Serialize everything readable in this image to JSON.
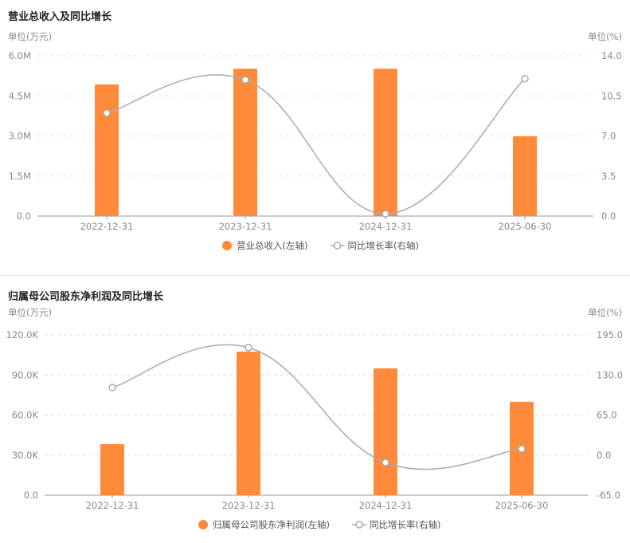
{
  "colors": {
    "bar": "#ff8b3a",
    "line": "#aaaaaa",
    "grid": "#e0e0e0",
    "axis": "#999999"
  },
  "chart_data": [
    {
      "type": "bar+line",
      "title": "营业总收入及同比增长",
      "left_unit": "单位(万元)",
      "right_unit": "单位(%)",
      "categories": [
        "2022-12-31",
        "2023-12-31",
        "2024-12-31",
        "2025-06-30"
      ],
      "left_ticks": [
        "0.0",
        "1.5M",
        "3.0M",
        "4.5M",
        "6.0M"
      ],
      "right_ticks": [
        "0.0",
        "3.5",
        "7.0",
        "10.5",
        "14.0"
      ],
      "ylim_left": [
        0,
        6000000
      ],
      "ylim_right": [
        0,
        14
      ],
      "series": [
        {
          "name": "营业总收入(左轴)",
          "type": "bar",
          "values": [
            4930000,
            5520000,
            5520000,
            2990000
          ]
        },
        {
          "name": "同比增长率(右轴)",
          "type": "line",
          "values": [
            9.0,
            11.9,
            0.2,
            12.0
          ]
        }
      ]
    },
    {
      "type": "bar+line",
      "title": "归属母公司股东净利润及同比增长",
      "left_unit": "单位(万元)",
      "right_unit": "单位(%)",
      "categories": [
        "2022-12-31",
        "2023-12-31",
        "2024-12-31",
        "2025-06-30"
      ],
      "left_ticks": [
        "0.0",
        "30.0K",
        "60.0K",
        "90.0K",
        "120.0K"
      ],
      "right_ticks": [
        "-65.0",
        "0.0",
        "65.0",
        "130.0",
        "195.0"
      ],
      "ylim_left": [
        0,
        120000
      ],
      "ylim_right": [
        -65,
        195
      ],
      "series": [
        {
          "name": "归属母公司股东净利润(左轴)",
          "type": "bar",
          "values": [
            38200,
            107500,
            94900,
            69900
          ]
        },
        {
          "name": "同比增长率(右轴)",
          "type": "line",
          "values": [
            109.6,
            174.3,
            -12.0,
            10.0
          ]
        }
      ]
    }
  ]
}
